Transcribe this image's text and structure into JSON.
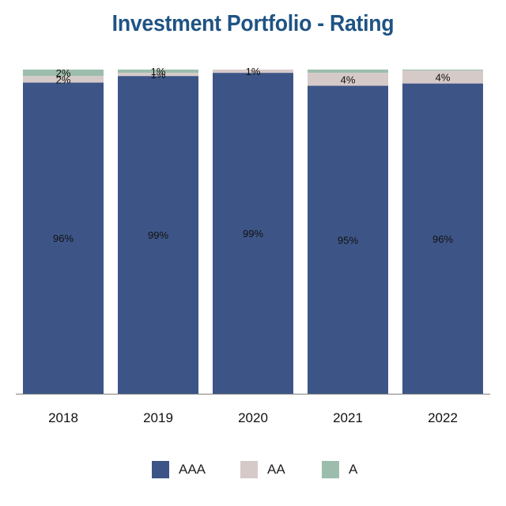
{
  "chart_data": {
    "type": "bar",
    "stacked": true,
    "title": "Investment Portfolio - Rating",
    "categories": [
      "2018",
      "2019",
      "2020",
      "2021",
      "2022"
    ],
    "series": [
      {
        "name": "AAA",
        "color": "#3d5586",
        "values": [
          96,
          99,
          99,
          95,
          96
        ],
        "labels": [
          "96%",
          "99%",
          "99%",
          "95%",
          "96%"
        ]
      },
      {
        "name": "AA",
        "color": "#d6cac8",
        "values": [
          2,
          1,
          1,
          4,
          4
        ],
        "labels": [
          "2%",
          "1%",
          "1%",
          "4%",
          "4%"
        ]
      },
      {
        "name": "A",
        "color": "#9dbdac",
        "values": [
          2,
          1,
          0,
          1,
          0.3
        ],
        "labels": [
          "2%",
          "1%",
          "",
          "",
          ""
        ]
      }
    ],
    "xlabel": "",
    "ylabel": "",
    "ylim": [
      0,
      100
    ],
    "legend_position": "bottom"
  }
}
